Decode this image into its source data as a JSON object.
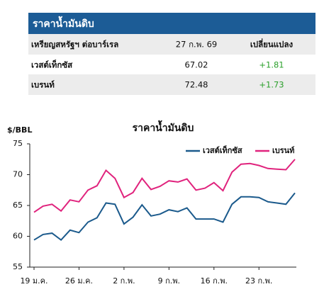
{
  "table": {
    "title": "ราคาน้ำมันดิบ",
    "header": [
      "เหรียญสหรัฐฯ ต่อบาร์เรล",
      "27 ก.พ. 69",
      "เปลี่ยนแปลง"
    ],
    "rows": [
      [
        "เวสต์เท็กซัส",
        "67.02",
        "+1.81"
      ],
      [
        "เบรนท์",
        "72.48",
        "+1.73"
      ]
    ]
  },
  "chart_data": {
    "type": "line",
    "title": "ราคาน้ำมันดิบ",
    "y_label": "$/BBL",
    "categories": [
      "19 ม.ค.",
      null,
      null,
      null,
      null,
      "26 ม.ค.",
      null,
      null,
      null,
      null,
      "2 ก.พ.",
      null,
      null,
      null,
      null,
      "9 ก.พ.",
      null,
      null,
      null,
      null,
      "16 ก.พ.",
      null,
      null,
      null,
      null,
      "23 ก.พ.",
      null,
      null,
      null,
      null
    ],
    "series": [
      {
        "name": "เวสต์เท็กซัส",
        "color": "#1b5a8c",
        "values": [
          59.4,
          60.3,
          60.5,
          59.4,
          61.0,
          60.6,
          62.3,
          63.0,
          65.4,
          65.2,
          62.0,
          63.1,
          65.1,
          63.3,
          63.6,
          64.3,
          64.0,
          64.6,
          62.8,
          62.8,
          62.8,
          62.3,
          65.2,
          66.4,
          66.4,
          66.3,
          65.6,
          65.4,
          65.2,
          67.02
        ]
      },
      {
        "name": "เบรนท์",
        "color": "#e0237d",
        "values": [
          63.9,
          64.9,
          65.2,
          64.1,
          65.9,
          65.6,
          67.5,
          68.2,
          70.7,
          69.4,
          66.3,
          67.1,
          69.4,
          67.6,
          68.1,
          69.0,
          68.8,
          69.3,
          67.5,
          67.8,
          68.7,
          67.4,
          70.4,
          71.7,
          71.8,
          71.5,
          71.0,
          70.9,
          70.8,
          72.48
        ]
      }
    ],
    "ylim": [
      55,
      75
    ],
    "yticks": [
      55,
      60,
      65,
      70,
      75
    ],
    "legend": "upper right"
  }
}
